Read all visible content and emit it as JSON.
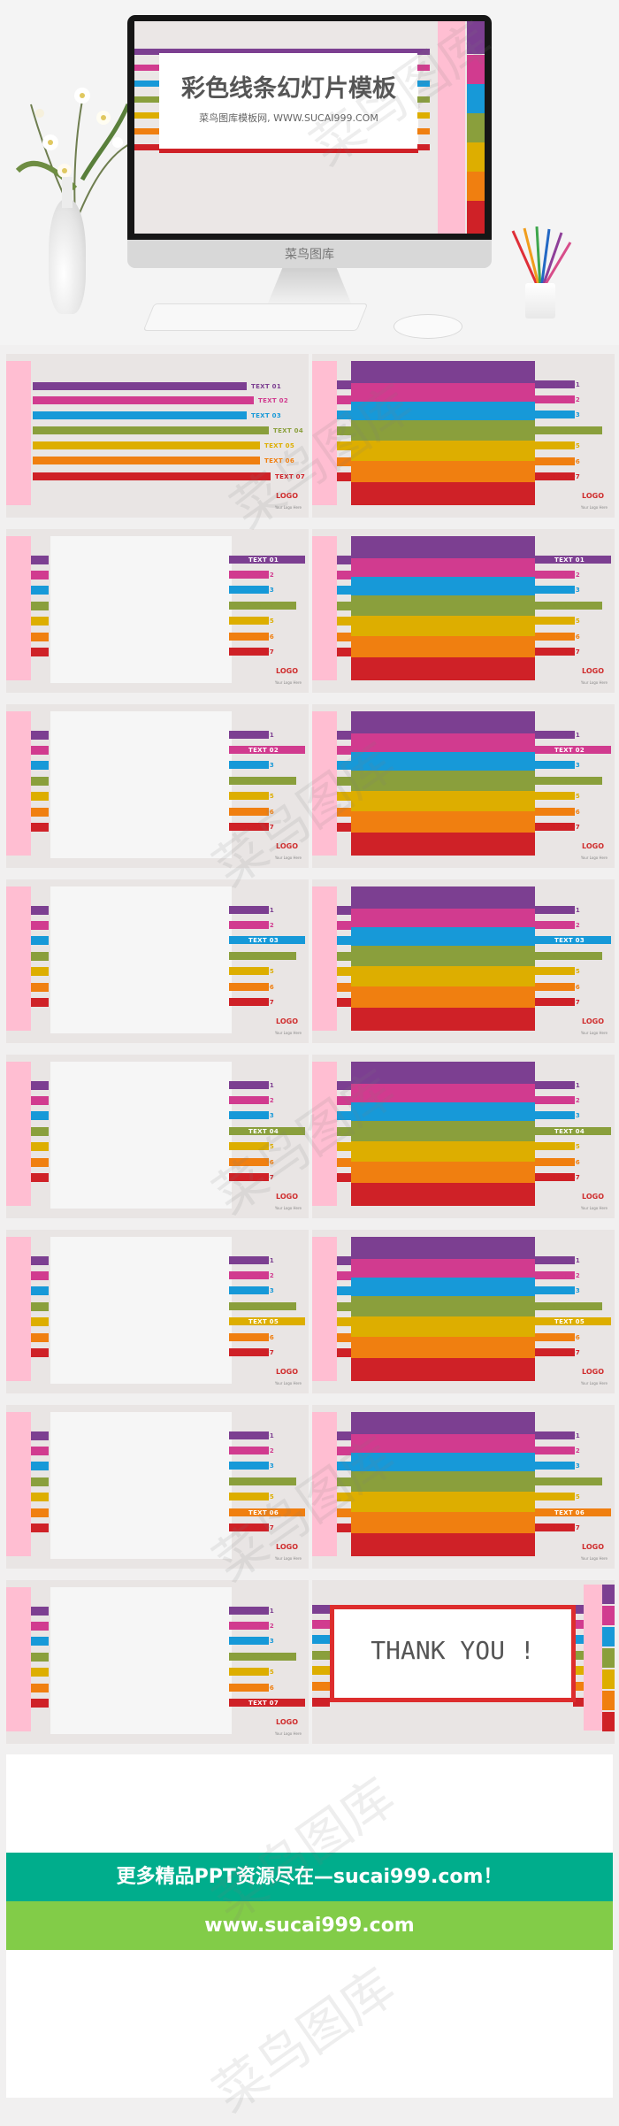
{
  "hero": {
    "title": "彩色线条幻灯片模板",
    "subtitle": "菜鸟图库模板网, WWW.SUCAI999.COM",
    "brand": "菜鸟图库"
  },
  "colors": {
    "purple": "#7c3f91",
    "magenta": "#d13b8f",
    "blue": "#1799d8",
    "olive": "#8a9f3c",
    "gold": "#ddae00",
    "orange": "#f07f10",
    "red": "#cf2127",
    "pink": "#ffbed2",
    "background": "#e9e5e4",
    "green_banner": "#00ad8c",
    "lime_banner": "#82cc48"
  },
  "labels": [
    "TEXT 01",
    "TEXT 02",
    "TEXT 03",
    "TEXT 04",
    "TEXT 05",
    "TEXT 06",
    "TEXT 07"
  ],
  "logo": "LOGO",
  "logo_sub": "Your Logo Here",
  "thank_you": "THANK YOU !",
  "banner1": "更多精品PPT资源尽在—sucai999.com！",
  "banner2": "www.sucai999.com",
  "watermark": "菜鸟图库",
  "slides": [
    {
      "type": "lines",
      "active": null
    },
    {
      "type": "bands",
      "active": null
    },
    {
      "type": "box",
      "active": 0
    },
    {
      "type": "bands",
      "active": 0
    },
    {
      "type": "box",
      "active": 1
    },
    {
      "type": "bands",
      "active": 1
    },
    {
      "type": "box",
      "active": 2
    },
    {
      "type": "bands",
      "active": 2
    },
    {
      "type": "box",
      "active": 3
    },
    {
      "type": "bands",
      "active": 3
    },
    {
      "type": "box",
      "active": 4
    },
    {
      "type": "bands",
      "active": 4
    },
    {
      "type": "box",
      "active": 5
    },
    {
      "type": "bands",
      "active": 5
    },
    {
      "type": "box",
      "active": 6
    },
    {
      "type": "thank",
      "active": null
    }
  ]
}
